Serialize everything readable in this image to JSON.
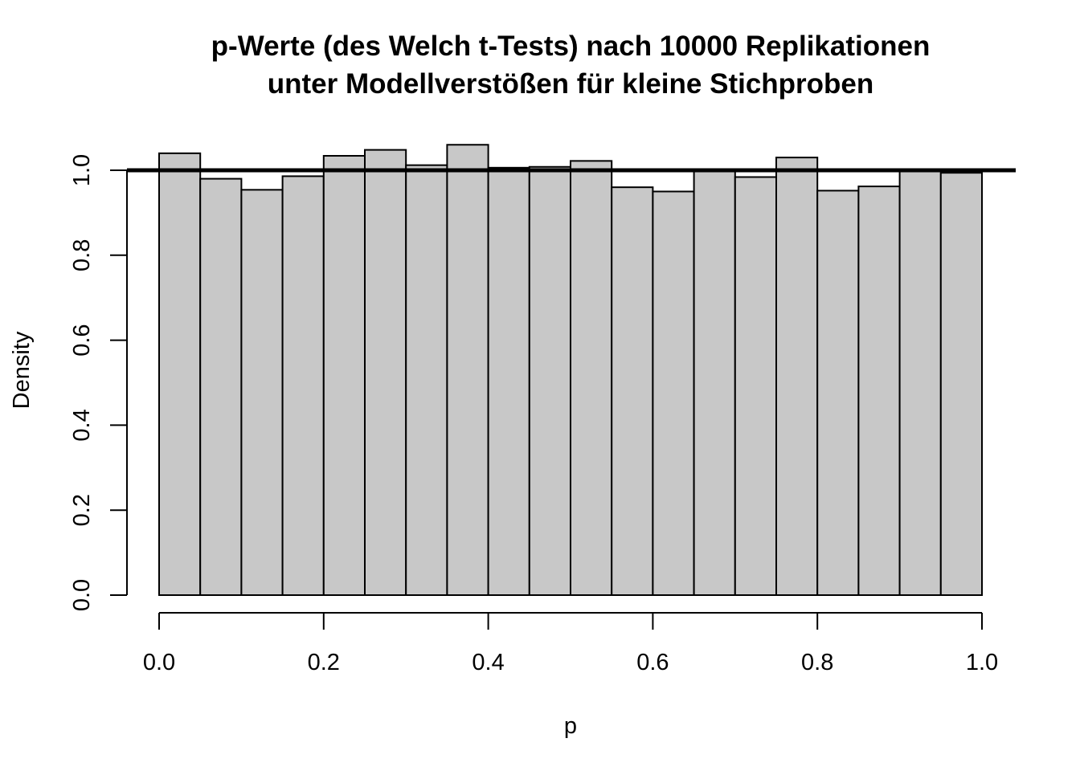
{
  "chart_data": {
    "type": "bar",
    "title_line1": "p-Werte (des Welch t-Tests) nach 10000 Replikationen",
    "title_line2": "unter Modellverstößen für kleine Stichproben",
    "xlabel": "p",
    "ylabel": "Density",
    "bin_width": 0.05,
    "bin_starts": [
      0.0,
      0.05,
      0.1,
      0.15,
      0.2,
      0.25,
      0.3,
      0.35,
      0.4,
      0.45,
      0.5,
      0.55,
      0.6,
      0.65,
      0.7,
      0.75,
      0.8,
      0.85,
      0.9,
      0.95
    ],
    "values": [
      1.04,
      0.98,
      0.954,
      0.986,
      1.034,
      1.048,
      1.012,
      1.06,
      1.006,
      1.008,
      1.022,
      0.96,
      0.95,
      1.0,
      0.984,
      1.03,
      0.952,
      0.962,
      1.0,
      0.994
    ],
    "reference_line_y": 1.0,
    "xlim": [
      0,
      1
    ],
    "ylim": [
      0,
      1.06
    ],
    "x_ticks": [
      0.0,
      0.2,
      0.4,
      0.6,
      0.8,
      1.0
    ],
    "x_tick_labels": [
      "0.0",
      "0.2",
      "0.4",
      "0.6",
      "0.8",
      "1.0"
    ],
    "y_ticks": [
      0.0,
      0.2,
      0.4,
      0.6,
      0.8,
      1.0
    ],
    "y_tick_labels": [
      "0.0",
      "0.2",
      "0.4",
      "0.6",
      "0.8",
      "1.0"
    ],
    "bar_fill": "#c8c8c8",
    "bar_stroke": "#000000",
    "line_color": "#000000",
    "grid": false,
    "legend": "none"
  }
}
